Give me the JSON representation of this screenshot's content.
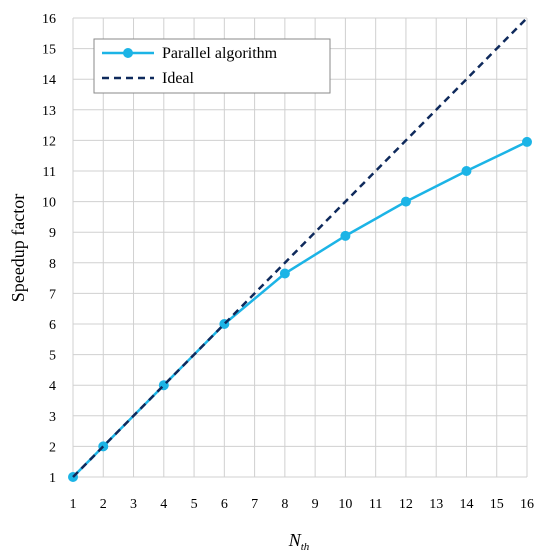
{
  "chart_data": {
    "type": "line",
    "title": "",
    "xlabel_main": "N",
    "xlabel_sub": "th",
    "ylabel": "Speedup factor",
    "xlim": [
      1,
      16
    ],
    "ylim": [
      1,
      16
    ],
    "x_ticks": [
      1,
      2,
      3,
      4,
      5,
      6,
      7,
      8,
      9,
      10,
      11,
      12,
      13,
      14,
      15,
      16
    ],
    "y_ticks": [
      1,
      2,
      3,
      4,
      5,
      6,
      7,
      8,
      9,
      10,
      11,
      12,
      13,
      14,
      15,
      16
    ],
    "grid": true,
    "legend_position": "top-left",
    "series": [
      {
        "name": "Parallel algorithm",
        "color": "#1cb4e6",
        "style": "solid-with-markers",
        "x": [
          1,
          2,
          4,
          6,
          8,
          10,
          12,
          14,
          16
        ],
        "y": [
          1,
          2,
          4,
          6,
          7.65,
          8.88,
          10.0,
          11.0,
          11.95
        ]
      },
      {
        "name": "Ideal",
        "color": "#0f2a5c",
        "style": "dashed",
        "x": [
          1,
          16
        ],
        "y": [
          1,
          16
        ]
      }
    ]
  }
}
